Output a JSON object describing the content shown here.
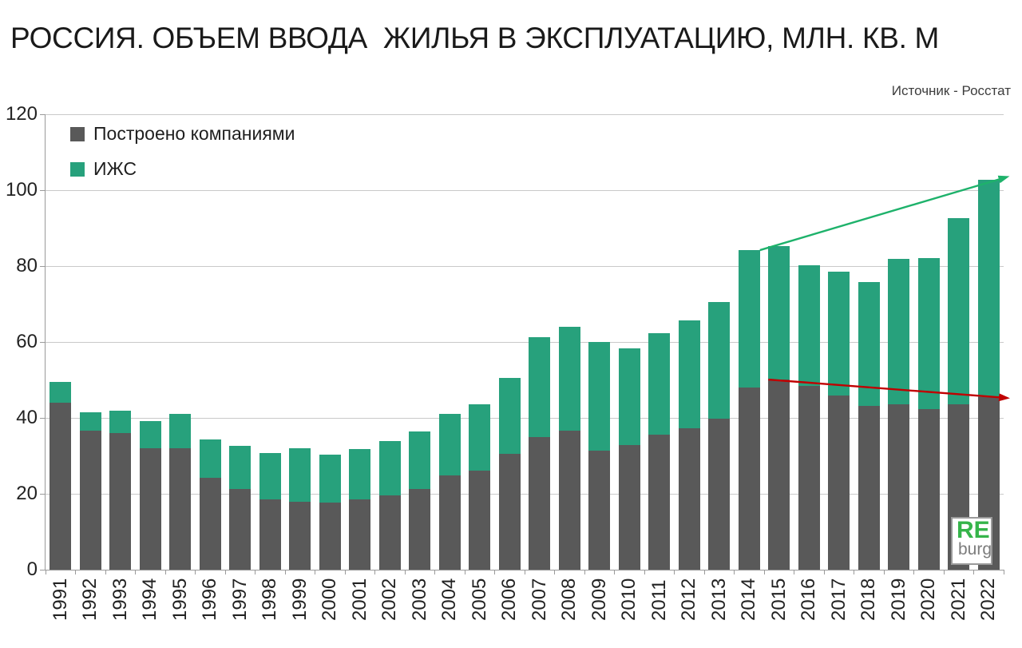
{
  "header": {
    "title": "РОССИЯ. ОБЪЕМ ВВОДА  ЖИЛЬЯ В ЭКСПЛУАТАЦИЮ, МЛН. КВ. М",
    "source": "Источник - Росстат"
  },
  "logo": {
    "line1": "RE",
    "line2": "burg",
    "line1_color": "#35b44a",
    "line2_color": "#7c7c7c"
  },
  "chart_data": {
    "type": "bar",
    "stacked": true,
    "title": "РОССИЯ. ОБЪЕМ ВВОДА ЖИЛЬЯ В ЭКСПЛУАТАЦИЮ, МЛН. КВ. М",
    "xlabel": "",
    "ylabel": "",
    "ylim": [
      0,
      120
    ],
    "yticks": [
      0,
      20,
      40,
      60,
      80,
      100,
      120
    ],
    "grid": true,
    "legend_position": "top-left-inside",
    "categories": [
      1991,
      1992,
      1993,
      1994,
      1995,
      1996,
      1997,
      1998,
      1999,
      2000,
      2001,
      2002,
      2003,
      2004,
      2005,
      2006,
      2007,
      2008,
      2009,
      2010,
      2011,
      2012,
      2013,
      2014,
      2015,
      2016,
      2017,
      2018,
      2019,
      2020,
      2021,
      2022
    ],
    "series": [
      {
        "name": "Построено компаниями",
        "color": "#595959",
        "values": [
          44.0,
          36.6,
          36.1,
          32.1,
          32.0,
          24.3,
          21.2,
          18.6,
          17.9,
          17.7,
          18.6,
          19.6,
          21.2,
          24.9,
          26.1,
          30.6,
          34.9,
          36.7,
          31.4,
          32.9,
          35.5,
          37.3,
          39.8,
          48.0,
          50.1,
          48.4,
          45.9,
          43.2,
          43.5,
          42.4,
          43.5,
          45.5
        ]
      },
      {
        "name": "ИЖС",
        "color": "#27a17c",
        "values": [
          5.4,
          4.9,
          5.7,
          7.1,
          9.0,
          10.0,
          11.5,
          12.1,
          14.1,
          12.6,
          13.1,
          14.2,
          15.2,
          16.1,
          17.5,
          20.0,
          26.3,
          27.4,
          28.5,
          25.5,
          26.8,
          28.4,
          30.7,
          36.2,
          35.2,
          31.8,
          32.7,
          32.5,
          38.5,
          39.8,
          49.1,
          57.2
        ]
      }
    ],
    "annotations": [
      {
        "name": "total-trend-arrow",
        "color": "#1eb26b",
        "from": {
          "year": 2014,
          "value": 84.2,
          "anchor": "right"
        },
        "to": {
          "value": 102.9
        }
      },
      {
        "name": "companies-trend-arrow",
        "color": "#c00000",
        "from": {
          "year": 2015,
          "value": 50.1,
          "anchor": "left"
        },
        "to": {
          "value": 45.4
        }
      }
    ]
  }
}
